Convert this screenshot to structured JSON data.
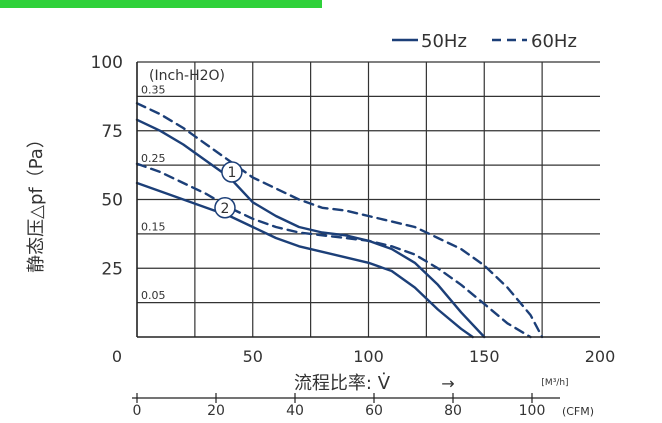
{
  "chart_data": {
    "type": "line",
    "ylabel": "静态压△pf（Pa）",
    "xlabel": "流程比率: V̇",
    "xlabel_arrow": "→",
    "x_unit": "[M³/h]",
    "xlim": [
      0,
      200
    ],
    "ylim": [
      0,
      100
    ],
    "x_ticks": [
      0,
      50,
      100,
      150,
      200
    ],
    "y_ticks": [
      0,
      25,
      50,
      75,
      100
    ],
    "grid": true,
    "secondary_y": {
      "label": "(Inch-H2O)",
      "ticks": [
        {
          "value": 0.35,
          "label": "0.35"
        },
        {
          "value": 0.25,
          "label": "0.25"
        },
        {
          "value": 0.15,
          "label": "0.15"
        },
        {
          "value": 0.05,
          "label": "0.05"
        }
      ]
    },
    "secondary_x": {
      "unit": "(CFM)",
      "ticks": [
        0,
        20,
        40,
        60,
        80,
        100
      ]
    },
    "legend": {
      "position": "top-right",
      "entries": [
        {
          "label": "50Hz",
          "style": "solid"
        },
        {
          "label": "60Hz",
          "style": "dashed"
        }
      ]
    },
    "curve_markers": [
      "1",
      "2"
    ],
    "series": [
      {
        "style": "solid",
        "curve": "1",
        "x": [
          0,
          10,
          20,
          30,
          40,
          50,
          60,
          70,
          80,
          90,
          100,
          110,
          120,
          130,
          140,
          150
        ],
        "y": [
          79,
          75,
          70,
          64,
          58,
          49,
          44,
          40,
          38,
          37,
          35,
          32,
          27,
          19,
          9,
          0
        ]
      },
      {
        "style": "solid",
        "curve": "2",
        "x": [
          0,
          10,
          20,
          30,
          40,
          50,
          60,
          70,
          80,
          90,
          100,
          110,
          120,
          130,
          140,
          145
        ],
        "y": [
          56,
          53,
          50,
          47,
          44,
          40,
          36,
          33,
          31,
          29,
          27,
          24,
          18,
          10,
          3,
          0
        ]
      },
      {
        "style": "dashed",
        "curve": "1",
        "x": [
          0,
          10,
          20,
          30,
          40,
          50,
          60,
          70,
          80,
          90,
          100,
          110,
          120,
          130,
          140,
          150,
          160,
          170,
          175
        ],
        "y": [
          85,
          81,
          76,
          70,
          64,
          58,
          54,
          50,
          47,
          46,
          44,
          42,
          40,
          36,
          32,
          26,
          18,
          8,
          0
        ]
      },
      {
        "style": "dashed",
        "curve": "2",
        "x": [
          0,
          10,
          20,
          30,
          40,
          50,
          60,
          70,
          80,
          90,
          100,
          110,
          120,
          130,
          140,
          150,
          160,
          170
        ],
        "y": [
          63,
          60,
          56,
          52,
          47,
          43,
          40,
          38,
          37,
          36,
          35,
          33,
          30,
          25,
          19,
          12,
          5,
          0
        ]
      }
    ]
  }
}
